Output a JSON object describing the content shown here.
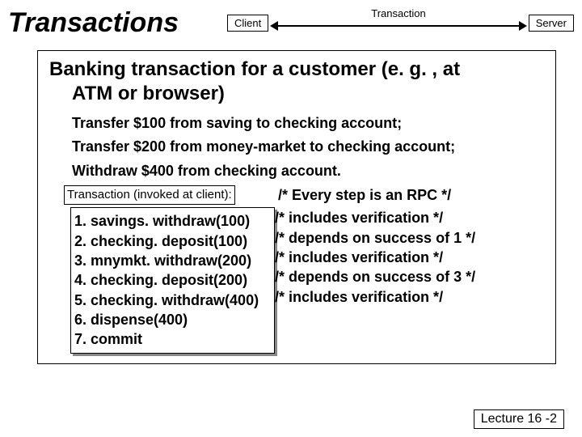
{
  "title": "Transactions",
  "diagram": {
    "left_node": "Client",
    "right_node": "Server",
    "edge_label": "Transaction"
  },
  "content": {
    "heading_l1": "Banking transaction for a customer (e. g. , at",
    "heading_l2": "ATM or browser)",
    "plain": [
      "Transfer $100 from saving to checking account;",
      "Transfer $200 from money-market to checking account;",
      "Withdraw $400 from checking account."
    ],
    "invoked_label": "Transaction (invoked at client):",
    "first_comment": "/* Every step is an RPC */",
    "steps": [
      {
        "code": "1. savings. withdraw(100)",
        "comment": "/* includes verification */"
      },
      {
        "code": "2. checking. deposit(100)",
        "comment": "/* depends on success of 1 */"
      },
      {
        "code": "3. mnymkt. withdraw(200)",
        "comment": "/* includes verification */"
      },
      {
        "code": "4. checking. deposit(200)",
        "comment": "/* depends on success of 3 */"
      },
      {
        "code": "5. checking. withdraw(400)",
        "comment": "/* includes verification */"
      },
      {
        "code": "6. dispense(400)",
        "comment": ""
      },
      {
        "code": "7. commit",
        "comment": ""
      }
    ]
  },
  "footer": "Lecture 16 -2",
  "colors": {
    "border": "#000000",
    "bg": "#ffffff",
    "shadow": "#888888"
  }
}
